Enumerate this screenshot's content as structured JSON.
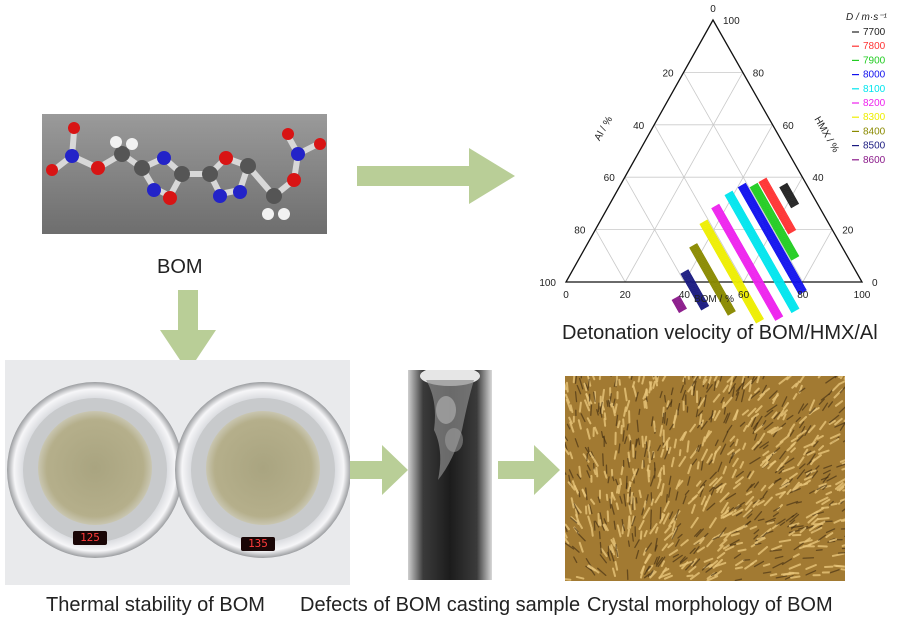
{
  "captions": {
    "bom": "BOM",
    "detonation": "Detonation velocity of BOM/HMX/Al",
    "thermal": "Thermal stability of BOM",
    "defects": "Defects of BOM casting sample",
    "crystal": "Crystal morphology of BOM"
  },
  "dish_readouts": [
    "125",
    "135"
  ],
  "chart_data": {
    "type": "ternary",
    "axes": {
      "bottom": {
        "label": "BOM / %",
        "ticks": [
          "0",
          "20",
          "40",
          "60",
          "80",
          "100"
        ]
      },
      "right": {
        "label": "HMX / %",
        "ticks": [
          "0",
          "20",
          "40",
          "60",
          "80",
          "100"
        ]
      },
      "left": {
        "label": "Al / %",
        "ticks": [
          "20",
          "40",
          "60",
          "80",
          "100"
        ]
      },
      "apex": "0"
    },
    "legend": {
      "title": "D / m·s⁻¹",
      "placement": "top-right",
      "entries": [
        {
          "label": "7700",
          "color": "#222222"
        },
        {
          "label": "7800",
          "color": "#ff3333"
        },
        {
          "label": "7900",
          "color": "#22cc22"
        },
        {
          "label": "8000",
          "color": "#1111ee"
        },
        {
          "label": "8100",
          "color": "#00e5ee"
        },
        {
          "label": "8200",
          "color": "#ee22ee"
        },
        {
          "label": "8300",
          "color": "#eeee00"
        },
        {
          "label": "8400",
          "color": "#8a8a00"
        },
        {
          "label": "8500",
          "color": "#1a1a80"
        },
        {
          "label": "8600",
          "color": "#8a1a8a"
        }
      ]
    },
    "contours": [
      {
        "level": "7700",
        "bom_range": [
          55,
          63
        ],
        "al": 8
      },
      {
        "level": "7800",
        "bom_range": [
          47,
          67
        ],
        "al": 14
      },
      {
        "level": "7900",
        "bom_range": [
          45,
          73
        ],
        "al": 18
      },
      {
        "level": "8000",
        "bom_range": [
          41,
          82
        ],
        "al": 22
      },
      {
        "level": "8100",
        "bom_range": [
          38,
          83
        ],
        "al": 28
      },
      {
        "level": "8200",
        "bom_range": [
          36,
          79
        ],
        "al": 35
      },
      {
        "level": "8300",
        "bom_range": [
          35,
          73
        ],
        "al": 42
      },
      {
        "level": "8400",
        "bom_range": [
          36,
          62
        ],
        "al": 50
      },
      {
        "level": "8500",
        "bom_range": [
          38,
          52
        ],
        "al": 58
      },
      {
        "level": "8600",
        "bom_range": [
          40,
          45
        ],
        "al": 66
      }
    ]
  }
}
